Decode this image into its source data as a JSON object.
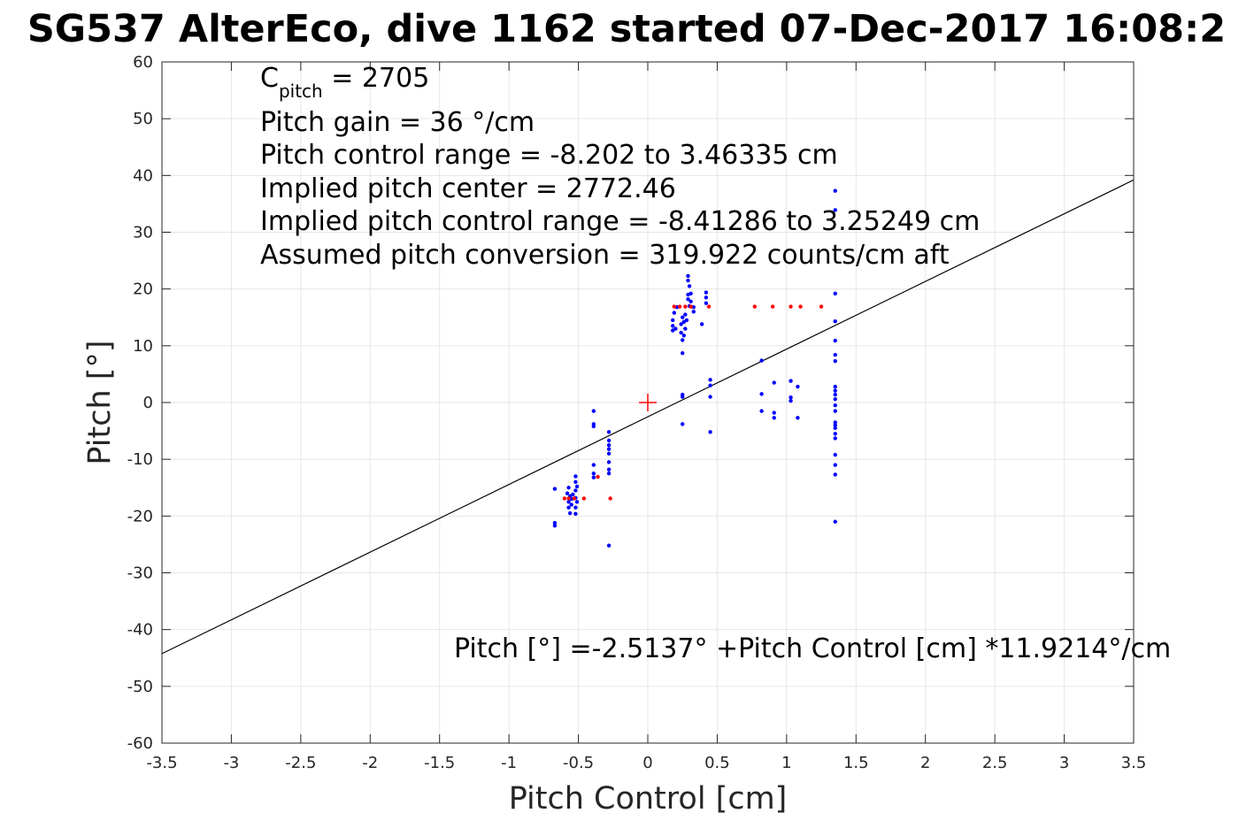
{
  "chart_data": {
    "type": "scatter",
    "title": "SG537 AlterEco, dive 1162 started 07-Dec-2017 16:08:2",
    "xlabel": "Pitch Control [cm]",
    "ylabel": "Pitch [°]",
    "xlim": [
      -3.5,
      3.5
    ],
    "ylim": [
      -60,
      60
    ],
    "xticks": [
      -3.5,
      -3,
      -2.5,
      -2,
      -1.5,
      -1,
      -0.5,
      0,
      0.5,
      1,
      1.5,
      2,
      2.5,
      3,
      3.5
    ],
    "xtick_labels": [
      "-3.5",
      "-3",
      "-2.5",
      "-2",
      "-1.5",
      "-1",
      "-0.5",
      "0",
      "0.5",
      "1",
      "1.5",
      "2",
      "2.5",
      "3",
      "3.5"
    ],
    "yticks": [
      -60,
      -50,
      -40,
      -30,
      -20,
      -10,
      0,
      10,
      20,
      30,
      40,
      50,
      60
    ],
    "ytick_labels": [
      "-60",
      "-50",
      "-40",
      "-30",
      "-20",
      "-10",
      "0",
      "10",
      "20",
      "30",
      "40",
      "50",
      "60"
    ],
    "grid": true,
    "annotations": {
      "c_pitch_main": "C",
      "c_pitch_sub": "pitch",
      "c_pitch_rest": " = 2705",
      "line2": "Pitch gain = 36 °/cm",
      "line3": "Pitch control range = -8.202 to 3.46335 cm",
      "line4": "Implied pitch center = 2772.46",
      "line5": "Implied pitch control range = -8.41286 to 3.25249 cm",
      "line6": "Assumed pitch conversion = 319.922 counts/cm aft",
      "fit_label": "Pitch [°] =-2.5137° +Pitch Control [cm] *11.9214°/cm"
    },
    "fit_line": {
      "intercept": -2.5137,
      "slope": 11.9214,
      "x_range": [
        -3.5,
        3.5
      ],
      "color": "#000000"
    },
    "center_marker": {
      "x": 0,
      "y": 0,
      "color": "#ff0000",
      "shape": "plus"
    },
    "series": [
      {
        "color": "#0000ff",
        "marker": "dot",
        "points": [
          [
            -0.67,
            -15.2
          ],
          [
            -0.67,
            -21.2
          ],
          [
            -0.67,
            -21.7
          ],
          [
            -0.58,
            -16.0
          ],
          [
            -0.57,
            -15.0
          ],
          [
            -0.57,
            -17.5
          ],
          [
            -0.57,
            -18.5
          ],
          [
            -0.56,
            -16.5
          ],
          [
            -0.56,
            -19.5
          ],
          [
            -0.55,
            -17.0
          ],
          [
            -0.55,
            -18.0
          ],
          [
            -0.54,
            -16.2
          ],
          [
            -0.52,
            -13.0
          ],
          [
            -0.52,
            -14.0
          ],
          [
            -0.52,
            -15.5
          ],
          [
            -0.52,
            -16.8
          ],
          [
            -0.52,
            -18.5
          ],
          [
            -0.52,
            -19.6
          ],
          [
            -0.51,
            -14.8
          ],
          [
            -0.51,
            -17.5
          ],
          [
            -0.39,
            -1.5
          ],
          [
            -0.39,
            -3.8
          ],
          [
            -0.39,
            -4.2
          ],
          [
            -0.39,
            -11.0
          ],
          [
            -0.39,
            -12.5
          ],
          [
            -0.39,
            -13.2
          ],
          [
            -0.28,
            -5.2
          ],
          [
            -0.28,
            -6.7
          ],
          [
            -0.28,
            -7.5
          ],
          [
            -0.28,
            -8.2
          ],
          [
            -0.28,
            -9.0
          ],
          [
            -0.28,
            -10.5
          ],
          [
            -0.28,
            -11.8
          ],
          [
            -0.28,
            -12.5
          ],
          [
            -0.28,
            -25.2
          ],
          [
            0.18,
            12.7
          ],
          [
            0.18,
            13.5
          ],
          [
            0.18,
            14.5
          ],
          [
            0.19,
            15.8
          ],
          [
            0.2,
            13.0
          ],
          [
            0.21,
            16.8
          ],
          [
            0.24,
            12.3
          ],
          [
            0.24,
            13.8
          ],
          [
            0.25,
            15.0
          ],
          [
            0.25,
            11.0
          ],
          [
            0.25,
            8.7
          ],
          [
            0.25,
            1.0
          ],
          [
            0.25,
            1.4
          ],
          [
            0.25,
            -3.8
          ],
          [
            0.26,
            11.8
          ],
          [
            0.26,
            14.2
          ],
          [
            0.27,
            13.0
          ],
          [
            0.27,
            15.5
          ],
          [
            0.28,
            14.5
          ],
          [
            0.29,
            22.3
          ],
          [
            0.29,
            21.5
          ],
          [
            0.29,
            19.0
          ],
          [
            0.29,
            18.2
          ],
          [
            0.3,
            20.5
          ],
          [
            0.3,
            17.0
          ],
          [
            0.31,
            17.8
          ],
          [
            0.31,
            19.2
          ],
          [
            0.33,
            16.0
          ],
          [
            0.33,
            16.8
          ],
          [
            0.39,
            13.8
          ],
          [
            0.42,
            19.4
          ],
          [
            0.42,
            18.5
          ],
          [
            0.42,
            17.5
          ],
          [
            0.45,
            4.0
          ],
          [
            0.45,
            3.0
          ],
          [
            0.45,
            1.0
          ],
          [
            0.45,
            -5.2
          ],
          [
            0.82,
            7.4
          ],
          [
            0.82,
            1.5
          ],
          [
            0.82,
            -1.5
          ],
          [
            0.91,
            3.5
          ],
          [
            0.91,
            -1.8
          ],
          [
            0.91,
            -2.7
          ],
          [
            1.03,
            3.8
          ],
          [
            1.03,
            0.9
          ],
          [
            1.03,
            0.3
          ],
          [
            1.08,
            2.8
          ],
          [
            1.08,
            -2.7
          ],
          [
            1.35,
            37.3
          ],
          [
            1.35,
            33.9
          ],
          [
            1.35,
            19.2
          ],
          [
            1.35,
            14.3
          ],
          [
            1.35,
            10.9
          ],
          [
            1.35,
            8.4
          ],
          [
            1.35,
            7.3
          ],
          [
            1.35,
            2.8
          ],
          [
            1.35,
            2.1
          ],
          [
            1.35,
            1.4
          ],
          [
            1.35,
            0.6
          ],
          [
            1.35,
            -0.5
          ],
          [
            1.35,
            -1.5
          ],
          [
            1.35,
            -3.5
          ],
          [
            1.35,
            -4.0
          ],
          [
            1.35,
            -4.5
          ],
          [
            1.35,
            -5.5
          ],
          [
            1.35,
            -6.3
          ],
          [
            1.35,
            -9.2
          ],
          [
            1.35,
            -11.0
          ],
          [
            1.35,
            -12.7
          ],
          [
            1.35,
            -21.0
          ]
        ]
      },
      {
        "color": "#ff0000",
        "marker": "dot",
        "points": [
          [
            -0.6,
            -16.9
          ],
          [
            -0.57,
            -16.9
          ],
          [
            -0.53,
            -16.9
          ],
          [
            -0.46,
            -16.9
          ],
          [
            -0.36,
            -13.1
          ],
          [
            -0.27,
            -16.9
          ],
          [
            0.19,
            16.9
          ],
          [
            0.23,
            16.9
          ],
          [
            0.27,
            16.9
          ],
          [
            0.31,
            16.9
          ],
          [
            0.44,
            16.9
          ],
          [
            0.77,
            16.9
          ],
          [
            0.9,
            16.9
          ],
          [
            1.03,
            16.9
          ],
          [
            1.1,
            16.9
          ],
          [
            1.25,
            16.9
          ]
        ]
      }
    ]
  }
}
